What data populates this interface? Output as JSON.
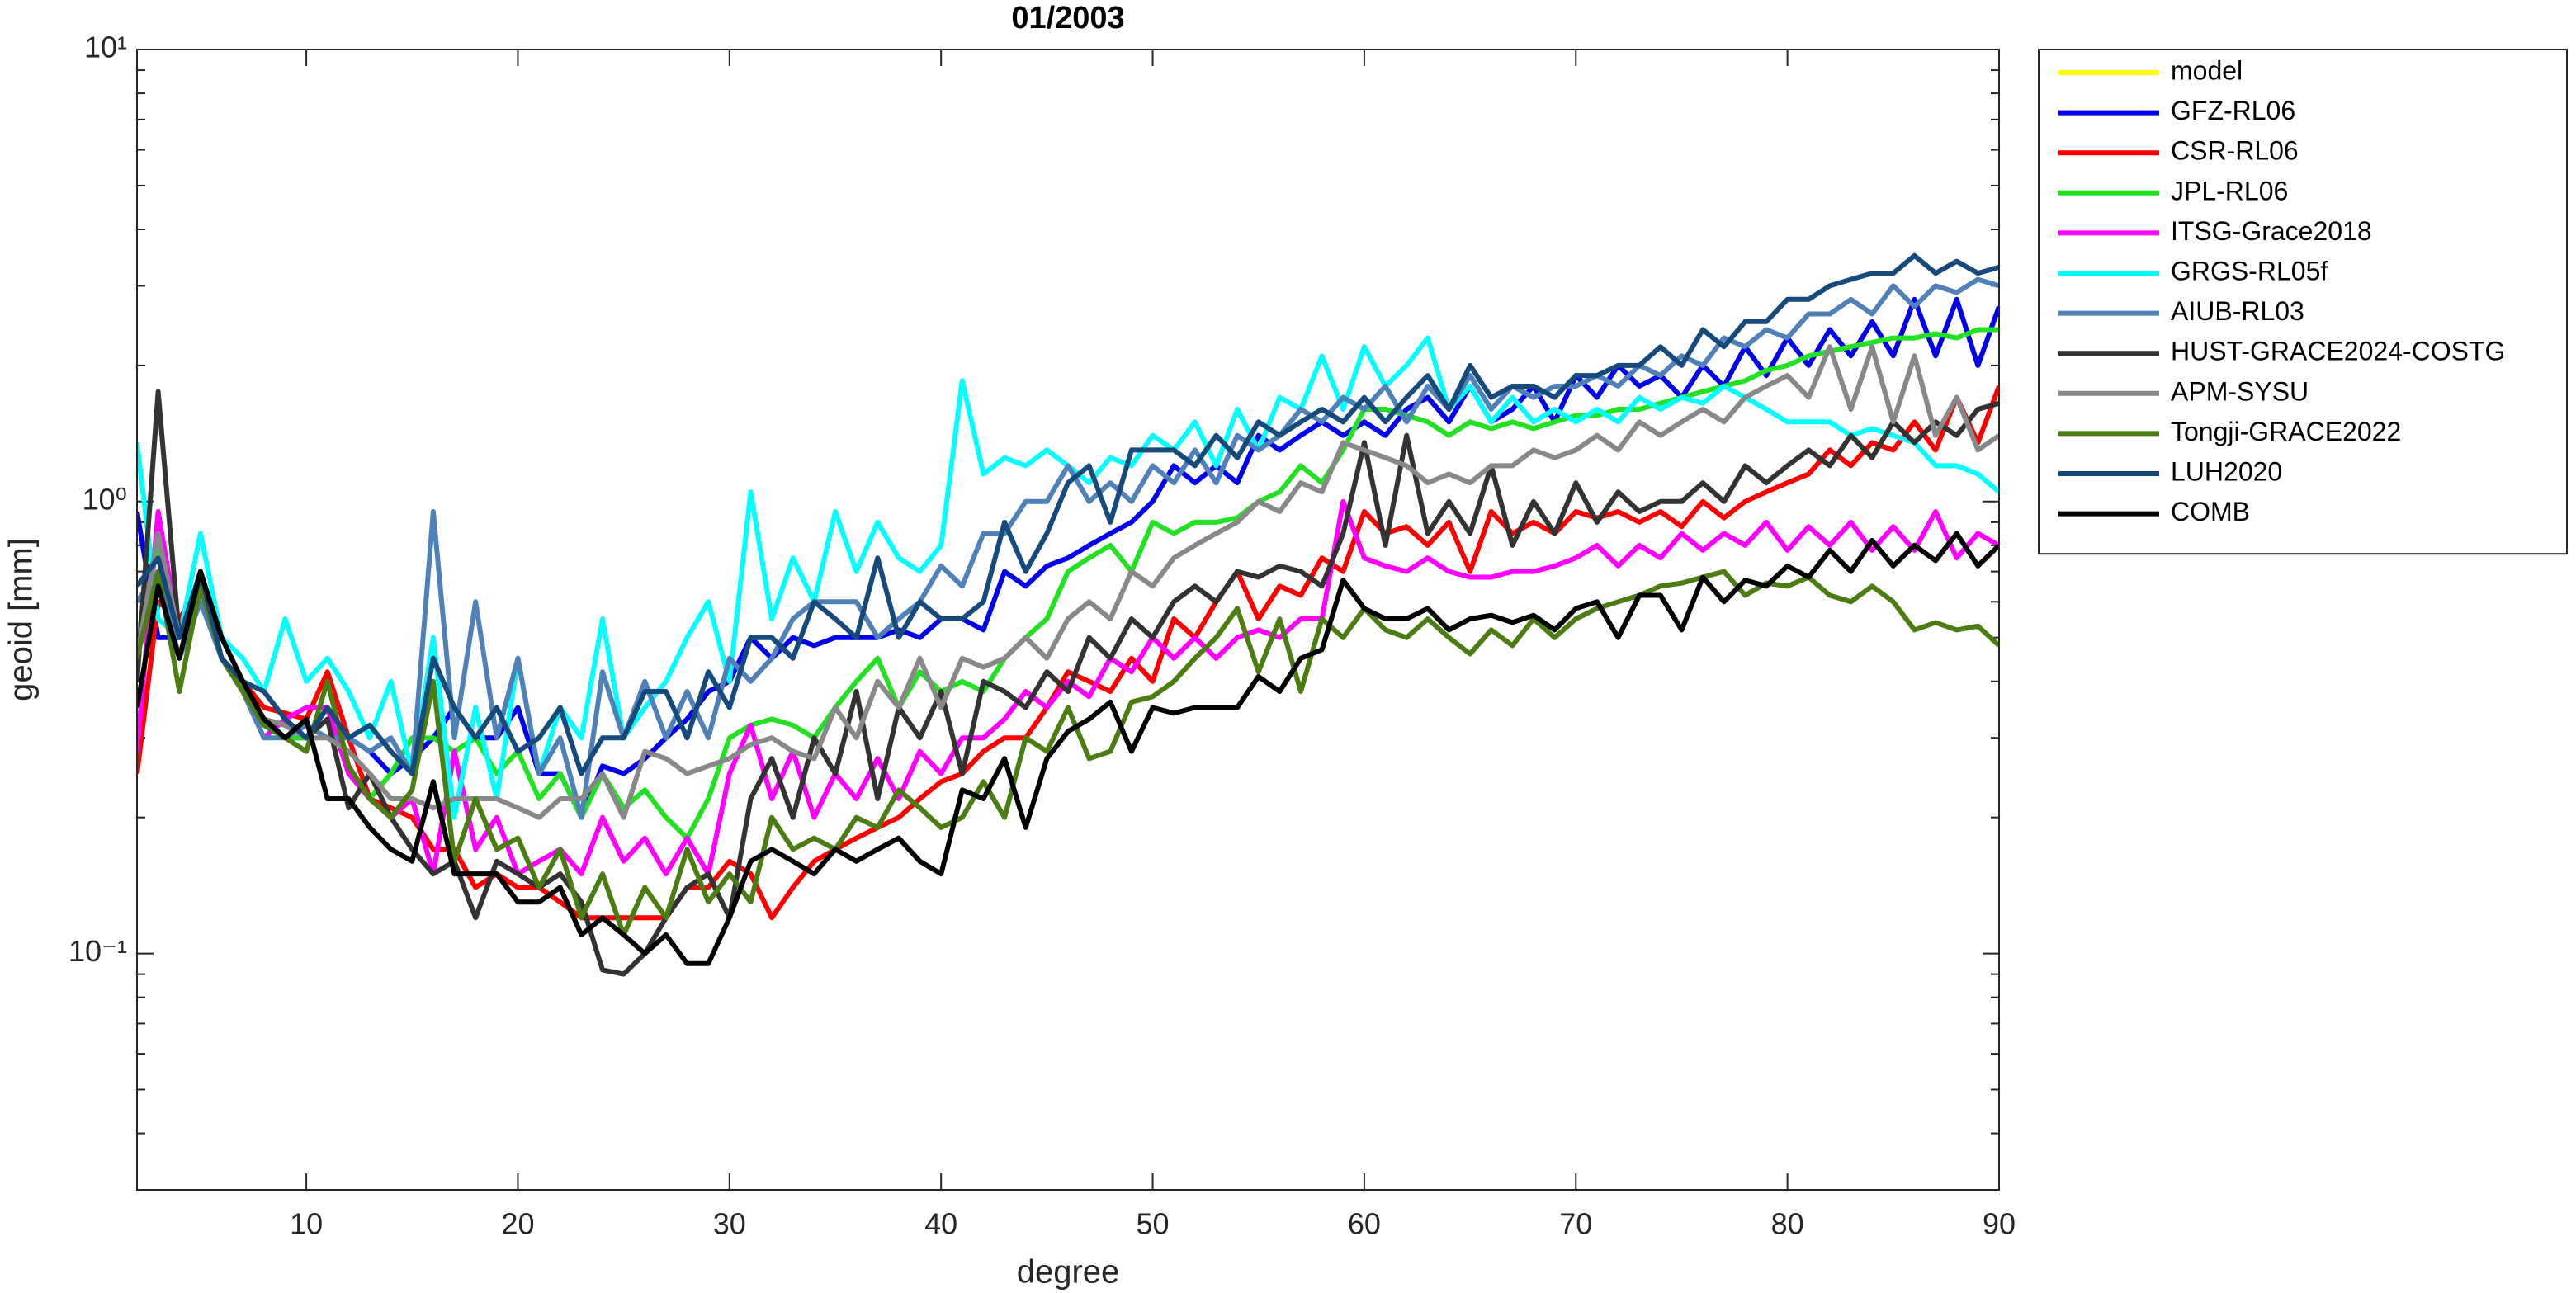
{
  "chart_data": {
    "type": "line",
    "title": "01/2003",
    "xlabel": "degree",
    "ylabel": "geoid [mm]",
    "log_y": true,
    "legend": "outside-right",
    "xlim": [
      2,
      90
    ],
    "xticks": [
      10,
      20,
      30,
      40,
      50,
      60,
      70,
      80,
      90
    ],
    "ylim": [
      0.03,
      10
    ],
    "yticks": [
      {
        "value": 0.1,
        "label": "10⁻¹"
      },
      {
        "value": 1,
        "label": "10⁰"
      },
      {
        "value": 10,
        "label": "10¹"
      }
    ],
    "x": [
      2,
      3,
      4,
      5,
      6,
      7,
      8,
      9,
      10,
      11,
      12,
      13,
      14,
      15,
      16,
      17,
      18,
      19,
      20,
      21,
      22,
      23,
      24,
      25,
      26,
      27,
      28,
      29,
      30,
      31,
      32,
      33,
      34,
      35,
      36,
      37,
      38,
      39,
      40,
      41,
      42,
      43,
      44,
      45,
      46,
      47,
      48,
      49,
      50,
      51,
      52,
      53,
      54,
      55,
      56,
      57,
      58,
      59,
      60,
      61,
      62,
      63,
      64,
      65,
      66,
      67,
      68,
      69,
      70,
      71,
      72,
      73,
      74,
      75,
      76,
      77,
      78,
      79,
      80,
      81,
      82,
      83,
      84,
      85,
      86,
      87,
      88,
      89,
      90
    ],
    "series": [
      {
        "name": "model",
        "color": "#ffff00",
        "values": [
          null,
          null,
          null,
          null,
          null,
          null,
          null,
          null,
          null,
          null,
          null,
          null,
          null,
          null,
          null,
          null,
          null,
          null,
          null,
          null,
          null,
          null,
          null,
          null,
          null,
          null,
          null,
          null,
          null,
          null,
          null,
          null,
          null,
          null,
          null,
          null,
          null,
          null,
          null,
          null,
          null,
          null,
          null,
          null,
          null,
          null,
          null,
          null,
          null,
          null,
          null,
          null,
          null,
          null,
          null,
          null,
          null,
          null,
          null,
          null,
          null,
          null,
          null,
          null,
          null,
          null,
          null,
          null,
          null,
          null,
          null,
          null,
          null,
          null,
          null,
          null,
          null,
          null,
          null,
          null,
          null,
          null,
          null,
          null,
          null,
          null,
          null,
          null,
          null
        ]
      },
      {
        "name": "GFZ-RL06",
        "color": "#0000ee",
        "values": [
          0.95,
          0.5,
          0.5,
          0.65,
          0.45,
          0.38,
          0.32,
          0.3,
          0.3,
          0.35,
          0.3,
          0.28,
          0.25,
          0.27,
          0.3,
          0.35,
          0.3,
          0.3,
          0.35,
          0.25,
          0.25,
          0.2,
          0.26,
          0.25,
          0.27,
          0.3,
          0.33,
          0.38,
          0.4,
          0.5,
          0.45,
          0.5,
          0.48,
          0.5,
          0.5,
          0.5,
          0.52,
          0.5,
          0.55,
          0.55,
          0.52,
          0.7,
          0.65,
          0.72,
          0.75,
          0.8,
          0.85,
          0.9,
          1.0,
          1.2,
          1.1,
          1.2,
          1.1,
          1.4,
          1.3,
          1.4,
          1.5,
          1.4,
          1.5,
          1.4,
          1.6,
          1.7,
          1.5,
          1.8,
          1.5,
          1.6,
          1.8,
          1.5,
          1.9,
          1.7,
          2.0,
          1.8,
          1.9,
          1.7,
          2.0,
          1.8,
          2.2,
          1.9,
          2.3,
          2.0,
          2.4,
          2.1,
          2.5,
          2.1,
          2.8,
          2.1,
          2.8,
          2.0,
          2.7
        ]
      },
      {
        "name": "CSR-RL06",
        "color": "#ff0000",
        "values": [
          0.25,
          0.6,
          0.55,
          0.65,
          0.45,
          0.4,
          0.35,
          0.34,
          0.33,
          0.42,
          0.3,
          0.22,
          0.21,
          0.2,
          0.17,
          0.17,
          0.14,
          0.15,
          0.14,
          0.14,
          0.13,
          0.12,
          0.12,
          0.12,
          0.12,
          0.12,
          0.14,
          0.14,
          0.16,
          0.15,
          0.12,
          0.14,
          0.16,
          0.17,
          0.18,
          0.19,
          0.2,
          0.22,
          0.24,
          0.25,
          0.28,
          0.3,
          0.3,
          0.35,
          0.42,
          0.4,
          0.38,
          0.45,
          0.4,
          0.55,
          0.5,
          0.6,
          0.7,
          0.55,
          0.65,
          0.62,
          0.75,
          0.7,
          0.95,
          0.85,
          0.88,
          0.8,
          0.9,
          0.7,
          0.95,
          0.85,
          0.9,
          0.85,
          0.95,
          0.92,
          0.95,
          0.9,
          0.95,
          0.88,
          1.0,
          0.92,
          1.0,
          1.05,
          1.1,
          1.15,
          1.3,
          1.2,
          1.35,
          1.3,
          1.5,
          1.3,
          1.7,
          1.35,
          1.8
        ]
      },
      {
        "name": "JPL-RL06",
        "color": "#22e022",
        "values": [
          0.5,
          0.8,
          0.5,
          0.65,
          0.45,
          0.38,
          0.32,
          0.3,
          0.3,
          0.35,
          0.25,
          0.22,
          0.25,
          0.3,
          0.3,
          0.28,
          0.3,
          0.25,
          0.28,
          0.22,
          0.25,
          0.2,
          0.25,
          0.21,
          0.23,
          0.2,
          0.18,
          0.22,
          0.3,
          0.32,
          0.33,
          0.32,
          0.3,
          0.35,
          0.4,
          0.45,
          0.35,
          0.42,
          0.38,
          0.4,
          0.38,
          0.45,
          0.5,
          0.55,
          0.7,
          0.75,
          0.8,
          0.7,
          0.9,
          0.85,
          0.9,
          0.9,
          0.92,
          1.0,
          1.05,
          1.2,
          1.1,
          1.3,
          1.6,
          1.6,
          1.55,
          1.5,
          1.4,
          1.5,
          1.45,
          1.5,
          1.45,
          1.5,
          1.55,
          1.55,
          1.6,
          1.6,
          1.65,
          1.7,
          1.75,
          1.8,
          1.85,
          1.95,
          2.0,
          2.1,
          2.15,
          2.2,
          2.25,
          2.3,
          2.3,
          2.35,
          2.3,
          2.4,
          2.4
        ]
      },
      {
        "name": "ITSG-Grace2018",
        "color": "#ff00ff",
        "values": [
          0.28,
          0.95,
          0.5,
          0.65,
          0.45,
          0.38,
          0.3,
          0.33,
          0.35,
          0.35,
          0.25,
          0.22,
          0.2,
          0.22,
          0.15,
          0.28,
          0.17,
          0.2,
          0.15,
          0.16,
          0.17,
          0.15,
          0.2,
          0.16,
          0.18,
          0.15,
          0.18,
          0.15,
          0.25,
          0.32,
          0.22,
          0.28,
          0.2,
          0.25,
          0.22,
          0.27,
          0.22,
          0.28,
          0.25,
          0.3,
          0.3,
          0.33,
          0.38,
          0.35,
          0.4,
          0.37,
          0.45,
          0.42,
          0.5,
          0.45,
          0.5,
          0.45,
          0.5,
          0.52,
          0.5,
          0.55,
          0.55,
          1.0,
          0.75,
          0.72,
          0.7,
          0.75,
          0.7,
          0.68,
          0.68,
          0.7,
          0.7,
          0.72,
          0.75,
          0.8,
          0.72,
          0.8,
          0.75,
          0.85,
          0.78,
          0.85,
          0.8,
          0.9,
          0.78,
          0.88,
          0.8,
          0.9,
          0.78,
          0.88,
          0.78,
          0.95,
          0.75,
          0.85,
          0.8
        ]
      },
      {
        "name": "GRGS-RL05f",
        "color": "#00ffff",
        "values": [
          1.35,
          0.55,
          0.5,
          0.85,
          0.5,
          0.45,
          0.38,
          0.55,
          0.4,
          0.45,
          0.38,
          0.3,
          0.4,
          0.25,
          0.5,
          0.2,
          0.35,
          0.22,
          0.45,
          0.25,
          0.35,
          0.3,
          0.55,
          0.3,
          0.35,
          0.4,
          0.5,
          0.6,
          0.4,
          1.05,
          0.55,
          0.75,
          0.6,
          0.95,
          0.7,
          0.9,
          0.75,
          0.7,
          0.8,
          1.85,
          1.15,
          1.25,
          1.2,
          1.3,
          1.2,
          1.1,
          1.25,
          1.2,
          1.4,
          1.3,
          1.5,
          1.2,
          1.6,
          1.3,
          1.7,
          1.6,
          2.1,
          1.6,
          2.2,
          1.8,
          2.0,
          2.3,
          1.6,
          1.8,
          1.5,
          1.7,
          1.5,
          1.6,
          1.5,
          1.6,
          1.5,
          1.7,
          1.6,
          1.7,
          1.65,
          1.8,
          1.7,
          1.6,
          1.5,
          1.5,
          1.5,
          1.4,
          1.45,
          1.4,
          1.35,
          1.2,
          1.2,
          1.15,
          1.05
        ]
      },
      {
        "name": "AIUB-RL03",
        "color": "#4f81b8",
        "values": [
          0.6,
          0.7,
          0.45,
          0.6,
          0.45,
          0.38,
          0.3,
          0.3,
          0.32,
          0.3,
          0.3,
          0.28,
          0.3,
          0.25,
          0.95,
          0.3,
          0.6,
          0.3,
          0.45,
          0.25,
          0.3,
          0.2,
          0.42,
          0.3,
          0.4,
          0.3,
          0.38,
          0.3,
          0.45,
          0.4,
          0.45,
          0.55,
          0.6,
          0.6,
          0.6,
          0.5,
          0.55,
          0.6,
          0.72,
          0.65,
          0.85,
          0.85,
          1.0,
          1.0,
          1.2,
          1.0,
          1.1,
          1.0,
          1.2,
          1.1,
          1.3,
          1.1,
          1.4,
          1.3,
          1.4,
          1.6,
          1.5,
          1.7,
          1.6,
          1.8,
          1.5,
          1.8,
          1.6,
          1.9,
          1.6,
          1.8,
          1.7,
          1.8,
          1.8,
          1.9,
          1.8,
          2.0,
          1.9,
          2.1,
          2.0,
          2.3,
          2.2,
          2.4,
          2.3,
          2.6,
          2.6,
          2.8,
          2.6,
          3.0,
          2.7,
          3.0,
          2.9,
          3.1,
          3.0
        ]
      },
      {
        "name": "HUST-GRACE2024-COSTG",
        "color": "#333333",
        "values": [
          0.4,
          1.75,
          0.5,
          0.65,
          0.45,
          0.38,
          0.33,
          0.32,
          0.3,
          0.33,
          0.21,
          0.25,
          0.2,
          0.17,
          0.15,
          0.16,
          0.12,
          0.16,
          0.15,
          0.14,
          0.15,
          0.13,
          0.092,
          0.09,
          0.1,
          0.12,
          0.14,
          0.15,
          0.12,
          0.22,
          0.27,
          0.2,
          0.3,
          0.25,
          0.38,
          0.22,
          0.35,
          0.3,
          0.38,
          0.25,
          0.4,
          0.38,
          0.35,
          0.42,
          0.38,
          0.5,
          0.45,
          0.55,
          0.5,
          0.6,
          0.65,
          0.6,
          0.7,
          0.68,
          0.72,
          0.7,
          0.65,
          0.85,
          1.35,
          0.8,
          1.4,
          0.85,
          1.0,
          0.85,
          1.2,
          0.8,
          1.0,
          0.85,
          1.1,
          0.9,
          1.05,
          0.95,
          1.0,
          1.0,
          1.1,
          1.0,
          1.2,
          1.1,
          1.2,
          1.3,
          1.2,
          1.4,
          1.25,
          1.5,
          1.35,
          1.5,
          1.4,
          1.6,
          1.65
        ]
      },
      {
        "name": "APM-SYSU",
        "color": "#888888",
        "values": [
          0.45,
          0.85,
          0.5,
          0.65,
          0.45,
          0.38,
          0.33,
          0.32,
          0.3,
          0.3,
          0.28,
          0.25,
          0.22,
          0.22,
          0.21,
          0.22,
          0.22,
          0.22,
          0.21,
          0.2,
          0.22,
          0.22,
          0.25,
          0.2,
          0.28,
          0.27,
          0.25,
          0.26,
          0.27,
          0.29,
          0.3,
          0.28,
          0.27,
          0.35,
          0.3,
          0.4,
          0.35,
          0.45,
          0.35,
          0.45,
          0.43,
          0.45,
          0.5,
          0.45,
          0.55,
          0.6,
          0.55,
          0.7,
          0.65,
          0.75,
          0.8,
          0.85,
          0.9,
          1.0,
          0.95,
          1.1,
          1.05,
          1.35,
          1.3,
          1.25,
          1.2,
          1.1,
          1.15,
          1.1,
          1.2,
          1.2,
          1.3,
          1.25,
          1.3,
          1.4,
          1.3,
          1.5,
          1.4,
          1.5,
          1.6,
          1.5,
          1.7,
          1.8,
          1.9,
          1.7,
          2.2,
          1.6,
          2.2,
          1.5,
          2.1,
          1.4,
          1.7,
          1.3,
          1.4
        ]
      },
      {
        "name": "Tongji-GRACE2022",
        "color": "#4b7d12",
        "values": [
          0.45,
          0.7,
          0.38,
          0.65,
          0.45,
          0.38,
          0.32,
          0.3,
          0.28,
          0.4,
          0.26,
          0.22,
          0.2,
          0.23,
          0.4,
          0.16,
          0.22,
          0.17,
          0.18,
          0.14,
          0.17,
          0.12,
          0.15,
          0.11,
          0.14,
          0.12,
          0.17,
          0.13,
          0.15,
          0.13,
          0.2,
          0.17,
          0.18,
          0.17,
          0.2,
          0.19,
          0.23,
          0.21,
          0.19,
          0.2,
          0.24,
          0.2,
          0.3,
          0.28,
          0.35,
          0.27,
          0.28,
          0.36,
          0.37,
          0.4,
          0.45,
          0.5,
          0.58,
          0.42,
          0.55,
          0.38,
          0.55,
          0.5,
          0.58,
          0.52,
          0.5,
          0.55,
          0.5,
          0.46,
          0.52,
          0.48,
          0.55,
          0.5,
          0.55,
          0.58,
          0.6,
          0.62,
          0.65,
          0.66,
          0.68,
          0.7,
          0.62,
          0.66,
          0.65,
          0.68,
          0.62,
          0.6,
          0.65,
          0.6,
          0.52,
          0.54,
          0.52,
          0.53,
          0.48
        ]
      },
      {
        "name": "LUH2020",
        "color": "#174a7c",
        "values": [
          0.65,
          0.75,
          0.5,
          0.7,
          0.45,
          0.4,
          0.38,
          0.33,
          0.3,
          0.35,
          0.3,
          0.32,
          0.28,
          0.25,
          0.45,
          0.35,
          0.3,
          0.35,
          0.28,
          0.3,
          0.35,
          0.25,
          0.3,
          0.3,
          0.38,
          0.38,
          0.3,
          0.42,
          0.35,
          0.5,
          0.5,
          0.45,
          0.6,
          0.55,
          0.5,
          0.75,
          0.5,
          0.6,
          0.55,
          0.55,
          0.6,
          0.9,
          0.7,
          0.85,
          1.1,
          1.2,
          0.9,
          1.3,
          1.3,
          1.3,
          1.2,
          1.4,
          1.25,
          1.5,
          1.4,
          1.5,
          1.6,
          1.5,
          1.7,
          1.5,
          1.7,
          1.9,
          1.6,
          2.0,
          1.7,
          1.8,
          1.8,
          1.7,
          1.9,
          1.9,
          2.0,
          2.0,
          2.2,
          2.0,
          2.4,
          2.2,
          2.5,
          2.5,
          2.8,
          2.8,
          3.0,
          3.1,
          3.2,
          3.2,
          3.5,
          3.2,
          3.4,
          3.2,
          3.3
        ]
      },
      {
        "name": "COMB",
        "color": "#000000",
        "values": [
          0.35,
          0.65,
          0.45,
          0.7,
          0.5,
          0.4,
          0.33,
          0.3,
          0.33,
          0.22,
          0.22,
          0.19,
          0.17,
          0.16,
          0.24,
          0.15,
          0.15,
          0.15,
          0.13,
          0.13,
          0.14,
          0.11,
          0.12,
          0.11,
          0.1,
          0.11,
          0.095,
          0.095,
          0.12,
          0.16,
          0.17,
          0.16,
          0.15,
          0.17,
          0.16,
          0.17,
          0.18,
          0.16,
          0.15,
          0.23,
          0.22,
          0.27,
          0.19,
          0.27,
          0.31,
          0.33,
          0.36,
          0.28,
          0.35,
          0.34,
          0.35,
          0.35,
          0.35,
          0.41,
          0.38,
          0.45,
          0.47,
          0.67,
          0.58,
          0.55,
          0.55,
          0.58,
          0.52,
          0.55,
          0.56,
          0.54,
          0.56,
          0.52,
          0.58,
          0.6,
          0.5,
          0.62,
          0.62,
          0.52,
          0.68,
          0.6,
          0.67,
          0.65,
          0.72,
          0.68,
          0.78,
          0.7,
          0.82,
          0.72,
          0.8,
          0.74,
          0.85,
          0.72,
          0.8
        ]
      }
    ]
  }
}
